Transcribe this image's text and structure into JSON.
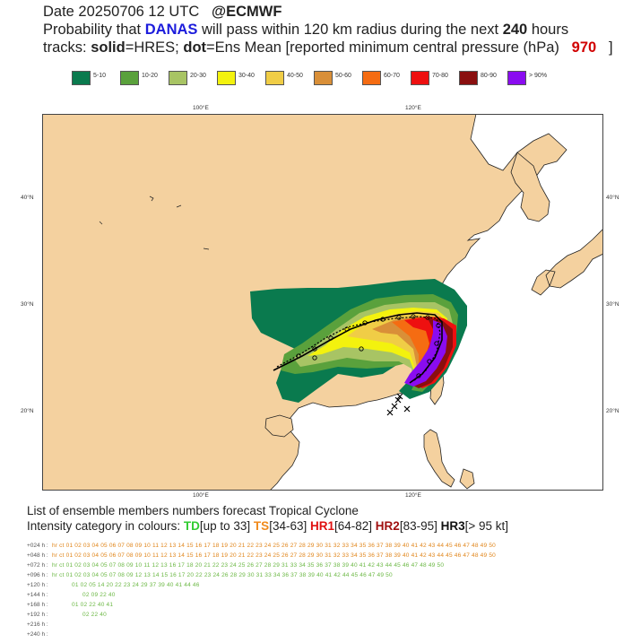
{
  "header": {
    "date_text": "Date 20250706 12 UTC",
    "source": "@ECMWF",
    "prob_prefix": "Probability that",
    "storm": "DANAS",
    "prob_middle": "will pass within 120 km radius during the next",
    "hours": "240",
    "hours_unit": "hours",
    "tracks_prefix": "tracks:",
    "solid_word": "solid",
    "solid_desc": "=HRES;",
    "dot_word": "dot",
    "dot_desc": "=Ens Mean [reported minimum central pressure (hPa)",
    "pressure": "970",
    "close_bracket": "]"
  },
  "legend": [
    {
      "label": "5-10",
      "color": "#0a7a4e"
    },
    {
      "label": "10-20",
      "color": "#5aa13c"
    },
    {
      "label": "20-30",
      "color": "#a8c464"
    },
    {
      "label": "30-40",
      "color": "#f3f20e"
    },
    {
      "label": "40-50",
      "color": "#f0cd46"
    },
    {
      "label": "50-60",
      "color": "#d98f38"
    },
    {
      "label": "60-70",
      "color": "#f56c12"
    },
    {
      "label": "70-80",
      "color": "#ee1010"
    },
    {
      "label": "80-90",
      "color": "#8a0f0f"
    },
    {
      "label": "> 90%",
      "color": "#8a0cf0"
    }
  ],
  "map": {
    "land_color": "#f4d19f",
    "sea_color": "#ffffff",
    "coast_color": "#222222",
    "lon_labels": [
      "100°E",
      "120°E"
    ],
    "lat_labels": [
      "40°N",
      "30°N",
      "20°N"
    ]
  },
  "section": {
    "title": "List of ensemble members numbers forecast Tropical Cyclone",
    "intensity_prefix": "Intensity category in colours:",
    "td_label": "TD",
    "td_range": "[up to 33]",
    "ts_label": "TS",
    "ts_range": "[34-63]",
    "hr1_label": "HR1",
    "hr1_range": "[64-82]",
    "hr2_label": "HR2",
    "hr2_range": "[83-95]",
    "hr3_label": "HR3",
    "hr3_range": "[> 95 kt]"
  },
  "members_table": {
    "rows": [
      {
        "lead": "+024 h :",
        "text": "hr ct 01 02 03 04 05 06 07 08 09 10 11 12 13 14 15 16 17 18 19 20 21 22 23 24 25 26 27 28 29 30 31 32 33 34 35 36 37 38 39 40 41 42 43 44 45 46 47 48 49 50"
      },
      {
        "lead": "+048 h :",
        "text": "hr ct 01 02 03 04 05 06 07 08 09 10 11 12 13 14 15 16 17 18 19 20 21 22 23 24 25 26 27 28 29 30 31 32 33 34 35 36 37 38 39 40 41 42 43 44 45 46 47 48 49 50"
      },
      {
        "lead": "+072 h :",
        "text": "hr ct 01 02 03 04 05 07 08 09 10 11 12 13 16 17 18 20 21 22 23 24 25 26 27 28 29 31 33 34 35 36 37 38 39 40 41 42 43 44 45 46 47 48 49 50"
      },
      {
        "lead": "+096 h :",
        "text": "hr ct 01 02 03 04 05 07 08 09 12 13 14 15 16 17 20 22 23 24 26 28 29 30 31 33 34 36 37 38 39 40 41 42 44 45 46 47 49 50"
      },
      {
        "lead": "+120 h :",
        "text": "01 02 05 14 20 22 23 24 29 37 39 40 41 44 46"
      },
      {
        "lead": "+144 h :",
        "text": "02 09 22 40"
      },
      {
        "lead": "+168 h :",
        "text": "01 02 22 40 41"
      },
      {
        "lead": "+192 h :",
        "text": "02 22 40"
      },
      {
        "lead": "+216 h :",
        "text": ""
      },
      {
        "lead": "+240 h :",
        "text": ""
      }
    ]
  }
}
